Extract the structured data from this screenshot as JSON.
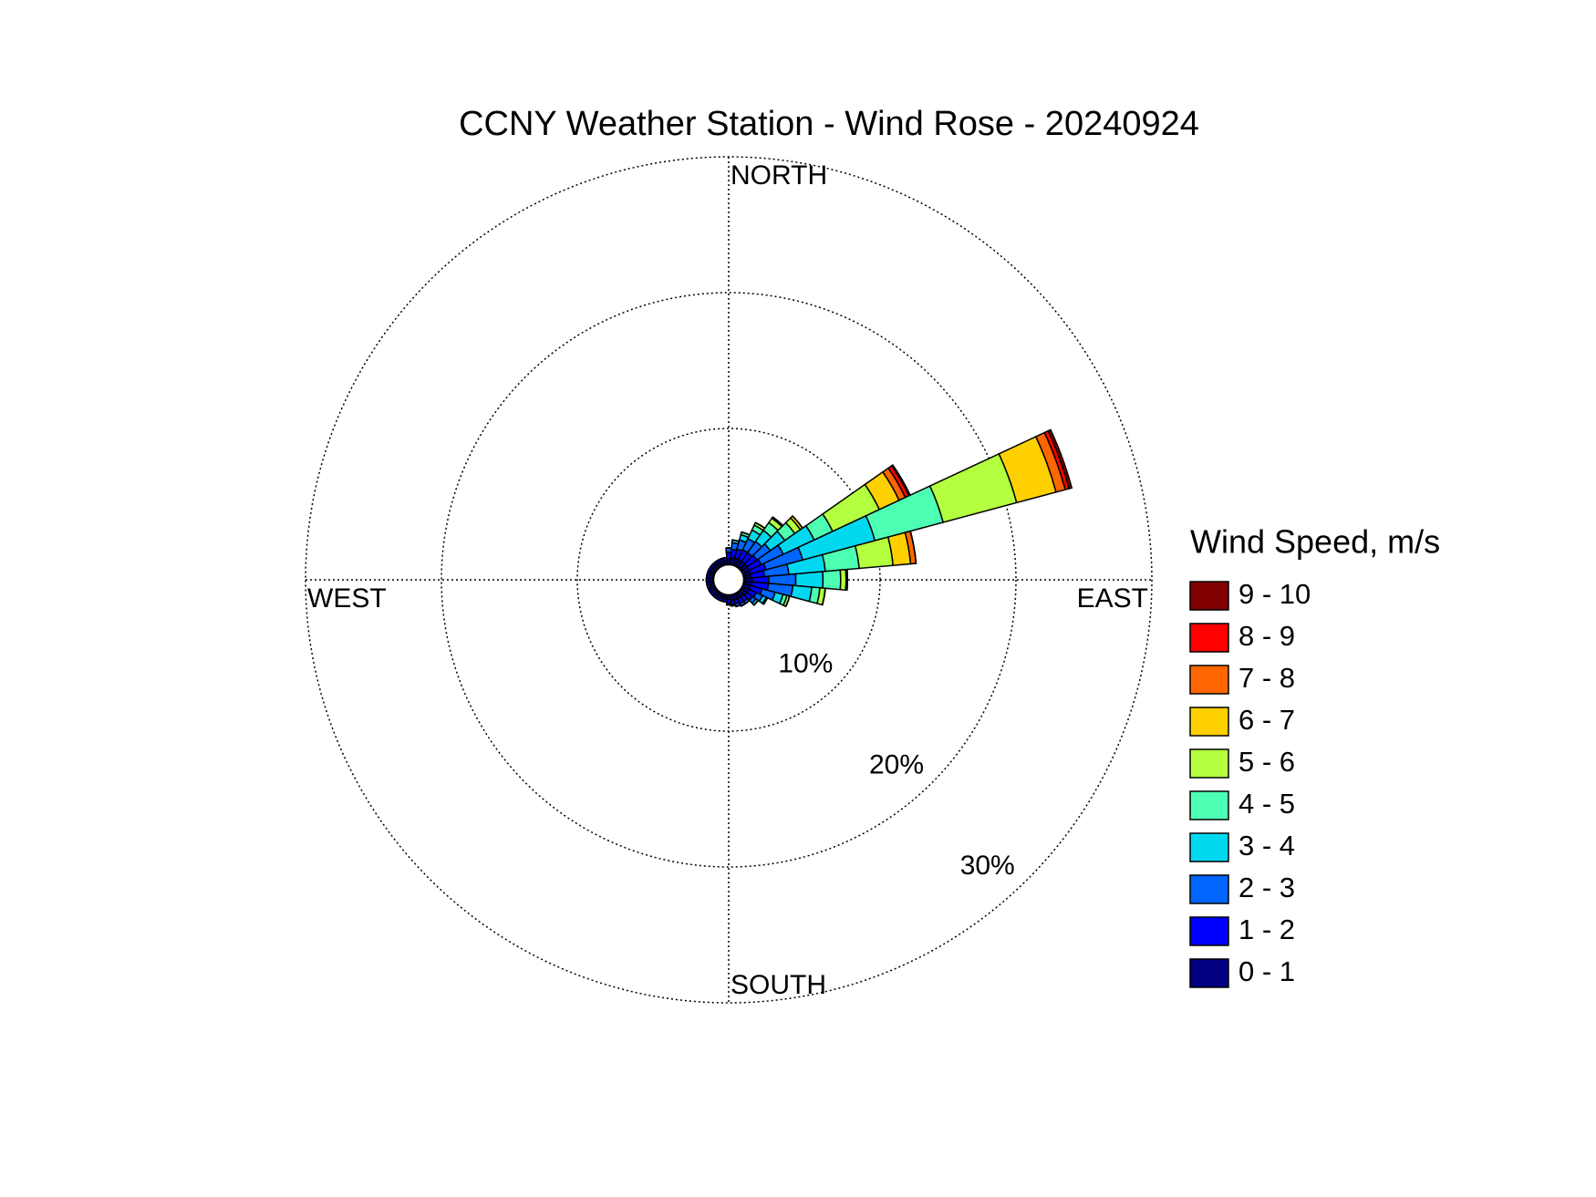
{
  "chart_data": {
    "type": "windrose",
    "title": "CCNY Weather Station - Wind Rose - 20240924",
    "x": [
      0,
      10,
      20,
      30,
      40,
      50,
      60,
      70,
      80,
      90,
      100,
      110,
      120,
      130,
      140,
      150,
      160,
      170,
      180,
      190,
      200,
      210,
      220,
      230,
      240,
      250,
      260,
      270,
      280,
      290,
      300,
      310,
      320,
      330,
      340,
      350
    ],
    "series": [
      {
        "name": "0 - 1",
        "color": "#000080",
        "values": [
          0.4,
          0.5,
          0.5,
          0.5,
          0.5,
          0.5,
          0.5,
          0.5,
          0.5,
          0.6,
          0.6,
          0.5,
          0.5,
          0.5,
          0.4,
          0.4,
          0.4,
          0.4,
          0.3,
          0.3,
          0.3,
          0.3,
          0.3,
          0.3,
          0.3,
          0.3,
          0.3,
          0.3,
          0.3,
          0.3,
          0.3,
          0.3,
          0.3,
          0.3,
          0.3,
          0.3
        ]
      },
      {
        "name": "1 - 2",
        "color": "#0000ff",
        "values": [
          0.5,
          0.6,
          0.7,
          0.8,
          0.8,
          0.9,
          1.0,
          1.2,
          1.0,
          1.2,
          1.2,
          0.9,
          0.6,
          0.5,
          0.4,
          0.4,
          0.3,
          0.3,
          0.3,
          0.2,
          0.2,
          0.2,
          0.2,
          0.2,
          0.2,
          0.2,
          0.2,
          0.2,
          0.2,
          0.2,
          0.2,
          0.2,
          0.2,
          0.2,
          0.2,
          0.2
        ]
      },
      {
        "name": "2 - 3",
        "color": "#0066ff",
        "values": [
          0.3,
          0.5,
          0.7,
          0.9,
          1.0,
          1.2,
          1.8,
          2.8,
          1.8,
          2.0,
          1.8,
          1.0,
          0.5,
          0.3,
          0.2,
          0.2,
          0.2,
          0.1,
          0.1,
          0,
          0,
          0,
          0,
          0,
          0,
          0,
          0,
          0,
          0,
          0,
          0,
          0,
          0,
          0,
          0,
          0
        ]
      },
      {
        "name": "3 - 4",
        "color": "#00d8f0",
        "values": [
          0,
          0.2,
          0.4,
          0.7,
          1.0,
          1.3,
          2.5,
          5.5,
          2.7,
          2.0,
          1.4,
          0.6,
          0.3,
          0.2,
          0,
          0,
          0,
          0,
          0,
          0,
          0,
          0,
          0,
          0,
          0,
          0,
          0,
          0,
          0,
          0,
          0,
          0,
          0,
          0,
          0,
          0
        ]
      },
      {
        "name": "4 - 5",
        "color": "#4dffb3",
        "values": [
          0,
          0,
          0.2,
          0.4,
          0.7,
          0.9,
          1.5,
          5.2,
          2.5,
          1.3,
          0.6,
          0.3,
          0.1,
          0,
          0,
          0,
          0,
          0,
          0,
          0,
          0,
          0,
          0,
          0,
          0,
          0,
          0,
          0,
          0,
          0,
          0,
          0,
          0,
          0,
          0,
          0
        ]
      },
      {
        "name": "5 - 6",
        "color": "#b3ff40",
        "values": [
          0,
          0,
          0,
          0.2,
          0.4,
          0.5,
          3.8,
          5.6,
          2.5,
          0.4,
          0.4,
          0.2,
          0,
          0,
          0,
          0,
          0,
          0,
          0,
          0,
          0,
          0,
          0,
          0,
          0,
          0,
          0,
          0,
          0,
          0,
          0,
          0,
          0,
          0,
          0,
          0
        ]
      },
      {
        "name": "6 - 7",
        "color": "#ffd000",
        "values": [
          0,
          0,
          0,
          0,
          0.1,
          0.2,
          1.6,
          3.0,
          1.3,
          0.1,
          0,
          0,
          0,
          0,
          0,
          0,
          0,
          0,
          0,
          0,
          0,
          0,
          0,
          0,
          0,
          0,
          0,
          0,
          0,
          0,
          0,
          0,
          0,
          0,
          0,
          0
        ]
      },
      {
        "name": "7 - 8",
        "color": "#ff6600",
        "values": [
          0,
          0,
          0,
          0,
          0,
          0,
          0.5,
          0.7,
          0.4,
          0,
          0,
          0,
          0,
          0,
          0,
          0,
          0,
          0,
          0,
          0,
          0,
          0,
          0,
          0,
          0,
          0,
          0,
          0,
          0,
          0,
          0,
          0,
          0,
          0,
          0,
          0
        ]
      },
      {
        "name": "8 - 9",
        "color": "#ff0000",
        "values": [
          0,
          0,
          0,
          0,
          0,
          0,
          0.3,
          0.3,
          0,
          0,
          0,
          0,
          0,
          0,
          0,
          0,
          0,
          0,
          0,
          0,
          0,
          0,
          0,
          0,
          0,
          0,
          0,
          0,
          0,
          0,
          0,
          0,
          0,
          0,
          0,
          0
        ]
      },
      {
        "name": "9 - 10",
        "color": "#800000",
        "values": [
          0,
          0,
          0,
          0,
          0,
          0,
          0.1,
          0.2,
          0,
          0,
          0,
          0,
          0,
          0,
          0,
          0,
          0,
          0,
          0,
          0,
          0,
          0,
          0,
          0,
          0,
          0,
          0,
          0,
          0,
          0,
          0,
          0,
          0,
          0,
          0,
          0
        ]
      }
    ],
    "rlim": [
      0,
      30
    ],
    "rticks": [
      {
        "value": 10,
        "label": "10%"
      },
      {
        "value": 20,
        "label": "20%"
      },
      {
        "value": 30,
        "label": "30%"
      }
    ],
    "direction_labels": [
      "NORTH",
      "EAST",
      "SOUTH",
      "WEST"
    ],
    "legend_title": "Wind Speed, m/s",
    "grid": true
  }
}
